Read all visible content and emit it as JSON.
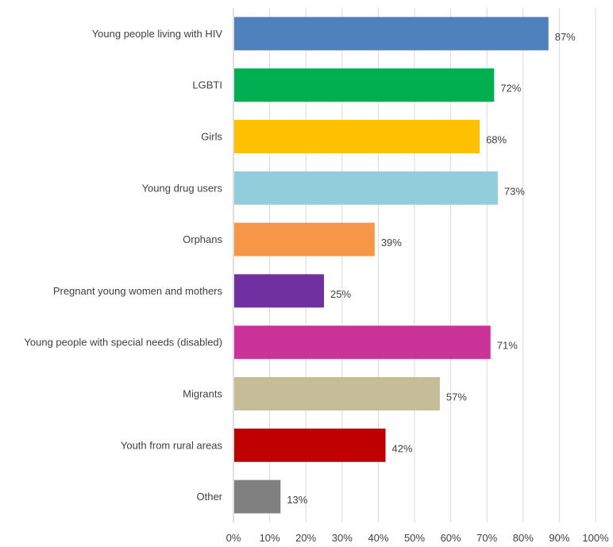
{
  "chart_data": {
    "type": "bar",
    "orientation": "horizontal",
    "title": "",
    "xlabel": "",
    "ylabel": "",
    "xlim": [
      0,
      100
    ],
    "grid": true,
    "legend": "none",
    "categories": [
      "Young people living with HIV",
      "LGBTI",
      "Girls",
      "Young drug users",
      "Orphans",
      "Pregnant young women and mothers",
      "Young people with special needs (disabled)",
      "Migrants",
      "Youth from rural areas",
      "Other"
    ],
    "values": [
      87,
      72,
      68,
      73,
      39,
      25,
      71,
      57,
      42,
      13
    ],
    "value_labels": [
      "87%",
      "72%",
      "68%",
      "73%",
      "39%",
      "25%",
      "71%",
      "57%",
      "42%",
      "13%"
    ],
    "colors": [
      "#4f81bd",
      "#00b050",
      "#ffc000",
      "#92cddc",
      "#f79646",
      "#7030a0",
      "#cc3399",
      "#c4bd97",
      "#c00000",
      "#808080"
    ],
    "ticks": [
      0,
      10,
      20,
      30,
      40,
      50,
      60,
      70,
      80,
      90,
      100
    ],
    "tick_labels": [
      "0%",
      "10%",
      "20%",
      "30%",
      "40%",
      "50%",
      "60%",
      "70%",
      "80%",
      "90%",
      "100%"
    ]
  }
}
